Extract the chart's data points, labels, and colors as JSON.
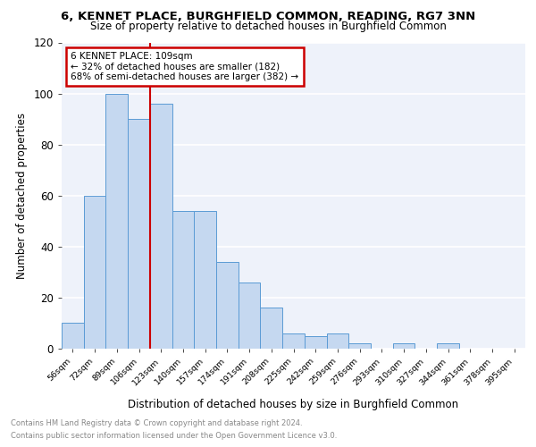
{
  "title": "6, KENNET PLACE, BURGHFIELD COMMON, READING, RG7 3NN",
  "subtitle": "Size of property relative to detached houses in Burghfield Common",
  "xlabel": "Distribution of detached houses by size in Burghfield Common",
  "ylabel": "Number of detached properties",
  "bar_values": [
    10,
    60,
    100,
    90,
    96,
    54,
    54,
    34,
    26,
    16,
    6,
    5,
    6,
    2,
    0,
    2,
    0,
    2,
    0,
    0,
    0
  ],
  "bar_labels": [
    "56sqm",
    "72sqm",
    "89sqm",
    "106sqm",
    "123sqm",
    "140sqm",
    "157sqm",
    "174sqm",
    "191sqm",
    "208sqm",
    "225sqm",
    "242sqm",
    "259sqm",
    "276sqm",
    "293sqm",
    "310sqm",
    "327sqm",
    "344sqm",
    "361sqm",
    "378sqm",
    "395sqm"
  ],
  "bar_color": "#c5d8f0",
  "bar_edge_color": "#5b9bd5",
  "property_label": "6 KENNET PLACE: 109sqm",
  "annotation_line1": "← 32% of detached houses are smaller (182)",
  "annotation_line2": "68% of semi-detached houses are larger (382) →",
  "vline_color": "#cc0000",
  "vline_x_idx": 3.5,
  "annotation_box_color": "#cc0000",
  "ylim": [
    0,
    120
  ],
  "yticks": [
    0,
    20,
    40,
    60,
    80,
    100,
    120
  ],
  "footer_line1": "Contains HM Land Registry data © Crown copyright and database right 2024.",
  "footer_line2": "Contains public sector information licensed under the Open Government Licence v3.0.",
  "background_color": "#eef2fa",
  "grid_color": "#ffffff"
}
